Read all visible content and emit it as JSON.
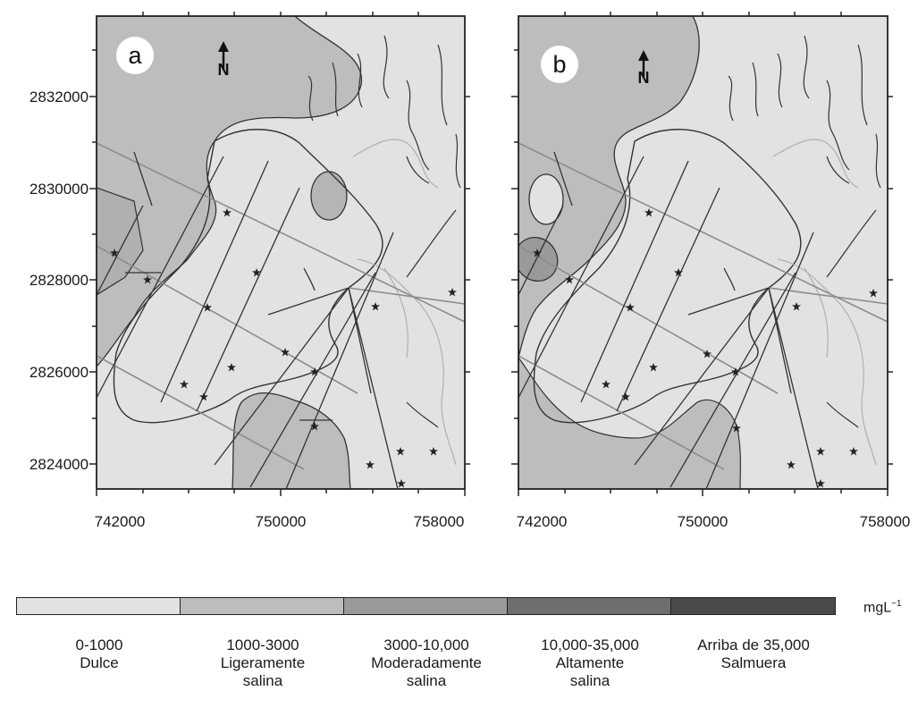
{
  "maps": [
    {
      "id": "a",
      "panel_letter": "a"
    },
    {
      "id": "b",
      "panel_letter": "b"
    }
  ],
  "north_label": "N",
  "axes": {
    "y_ticks": [
      "2832000",
      "2830000",
      "2828000",
      "2826000",
      "2824000"
    ],
    "x_ticks_a": [
      "742000",
      "750000",
      "758000"
    ],
    "x_ticks_b": [
      "742000",
      "750000",
      "758000"
    ]
  },
  "legend": {
    "unit": "mgL",
    "unit_sup": "−1",
    "classes": [
      {
        "range": "0-1000",
        "line1": "Dulce",
        "line2": "",
        "color": "#e2e2e2"
      },
      {
        "range": "1000-3000",
        "line1": "Ligeramente",
        "line2": "salina",
        "color": "#bdbdbd"
      },
      {
        "range": "3000-10,000",
        "line1": "Moderadamente",
        "line2": "salina",
        "color": "#9a9a9a"
      },
      {
        "range": "10,000-35,000",
        "line1": "Altamente",
        "line2": "salina",
        "color": "#6e6e6e"
      },
      {
        "range": "Arriba de 35,000",
        "line1": "Salmuera",
        "line2": "",
        "color": "#4a4a4a"
      }
    ]
  },
  "colors": {
    "dulce": "#e2e2e2",
    "ligera": "#bdbdbd",
    "moderada": "#9a9a9a",
    "canal": "#333333",
    "road": "#8c8c8c",
    "river_light": "#b0b0b0"
  }
}
